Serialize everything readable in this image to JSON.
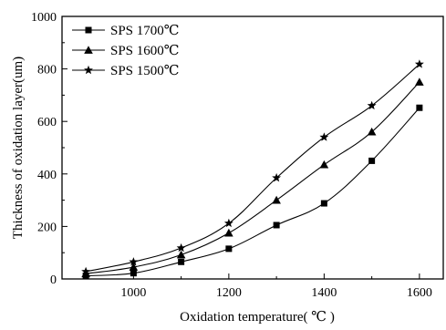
{
  "chart_data": {
    "type": "line",
    "title": "",
    "xlabel": "Oxidation temperature( ℃ )",
    "ylabel": "Thickness of oxidation layer(um)",
    "xlim": [
      850,
      1650
    ],
    "ylim": [
      0,
      1000
    ],
    "xticks": [
      1000,
      1200,
      1400,
      1600
    ],
    "yticks": [
      0,
      200,
      400,
      600,
      800,
      1000
    ],
    "grid": false,
    "legend_position": "top-left",
    "series": [
      {
        "name": "SPS 1700℃",
        "marker": "square",
        "x": [
          900,
          1000,
          1100,
          1200,
          1300,
          1400,
          1500,
          1600
        ],
        "y": [
          12,
          22,
          65,
          115,
          205,
          288,
          450,
          652
        ]
      },
      {
        "name": "SPS 1600℃",
        "marker": "triangle",
        "x": [
          900,
          1000,
          1100,
          1200,
          1300,
          1400,
          1500,
          1600
        ],
        "y": [
          20,
          45,
          92,
          175,
          300,
          435,
          560,
          750
        ]
      },
      {
        "name": "SPS 1500℃",
        "marker": "star",
        "x": [
          900,
          1000,
          1100,
          1200,
          1300,
          1400,
          1500,
          1600
        ],
        "y": [
          28,
          65,
          118,
          212,
          385,
          540,
          660,
          818
        ]
      }
    ]
  }
}
